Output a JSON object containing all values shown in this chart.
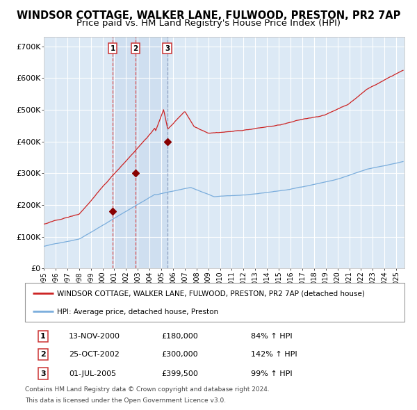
{
  "title": "WINDSOR COTTAGE, WALKER LANE, FULWOOD, PRESTON, PR2 7AP",
  "subtitle": "Price paid vs. HM Land Registry's House Price Index (HPI)",
  "title_fontsize": 10.5,
  "subtitle_fontsize": 9.5,
  "plot_bg_color": "#dce9f5",
  "grid_color": "#ffffff",
  "ylabel_ticks": [
    "£0",
    "£100K",
    "£200K",
    "£300K",
    "£400K",
    "£500K",
    "£600K",
    "£700K"
  ],
  "ytick_values": [
    0,
    100000,
    200000,
    300000,
    400000,
    500000,
    600000,
    700000
  ],
  "ylim": [
    0,
    730000
  ],
  "xlim_start": 1995.0,
  "xlim_end": 2025.7,
  "sale_dates_decimal": [
    2000.87,
    2002.82,
    2005.5
  ],
  "sale_prices": [
    180000,
    300000,
    399500
  ],
  "sale_labels": [
    "1",
    "2",
    "3"
  ],
  "legend_red_label": "WINDSOR COTTAGE, WALKER LANE, FULWOOD, PRESTON, PR2 7AP (detached house)",
  "legend_blue_label": "HPI: Average price, detached house, Preston",
  "footer_line1": "Contains HM Land Registry data © Crown copyright and database right 2024.",
  "footer_line2": "This data is licensed under the Open Government Licence v3.0.",
  "table_rows": [
    {
      "num": "1",
      "date": "13-NOV-2000",
      "price": "£180,000",
      "hpi": "84% ↑ HPI"
    },
    {
      "num": "2",
      "date": "25-OCT-2002",
      "price": "£300,000",
      "hpi": "142% ↑ HPI"
    },
    {
      "num": "3",
      "date": "01-JUL-2005",
      "price": "£399,500",
      "hpi": "99% ↑ HPI"
    }
  ],
  "red_line_color": "#cc2222",
  "blue_line_color": "#7aaddc",
  "marker_color": "#880000",
  "vline_red_color": "#dd4444",
  "vline_blue_color": "#8899bb",
  "span_color": "#c5d8ed"
}
